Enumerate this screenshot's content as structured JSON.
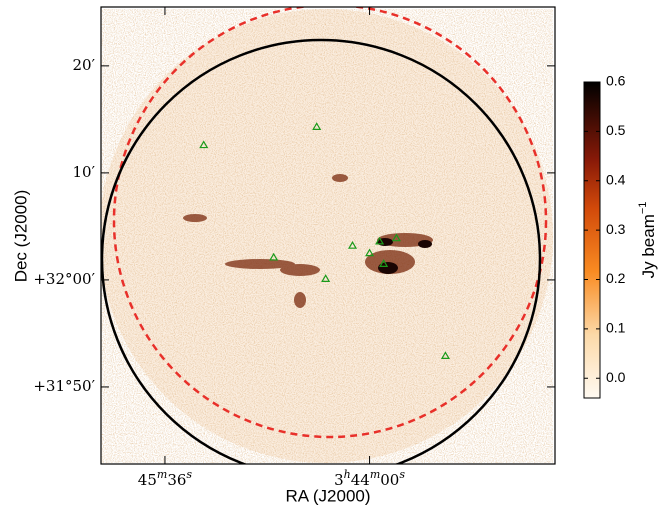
{
  "chart_data": {
    "type": "image",
    "xlabel": "RA (J2000)",
    "ylabel": "Dec (J2000)",
    "xlim": [
      126,
      -87
    ],
    "xticks": [
      {
        "value": 96,
        "label": [
          "45",
          "m",
          "36",
          "s"
        ]
      },
      {
        "value": 0,
        "label": [
          "3",
          "h",
          "44",
          "m",
          "00",
          "s"
        ]
      }
    ],
    "ylim": [
      -17.2,
      25.5
    ],
    "yticks": [
      {
        "value": 20,
        "label": "20′"
      },
      {
        "value": 10,
        "label": "10′"
      },
      {
        "value": 0,
        "label": "+32°00′"
      },
      {
        "value": -10,
        "label": "+31°50′"
      }
    ],
    "colorbar": {
      "label": [
        "Jy beam",
        "−1"
      ],
      "clim": [
        -0.04,
        0.6
      ],
      "ticks": [
        {
          "value": 0,
          "label": "0.0"
        },
        0.1,
        0.2,
        0.3,
        0.4,
        0.5,
        0.6
      ]
    },
    "sources": {
      "color": "#1a9a1a",
      "x": [
        77.8,
        24.8,
        8.0,
        20.6,
        -35.6,
        -12.6,
        -4.7,
        0,
        45.0,
        -6.6
      ],
      "y": [
        12.6,
        14.3,
        3.2,
        0.1,
        -7.1,
        3.9,
        3.6,
        2.5,
        2.1,
        1.5
      ]
    }
  }
}
